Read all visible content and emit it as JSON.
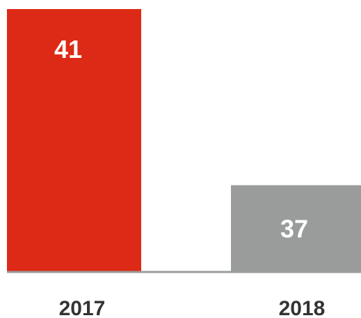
{
  "chart_data": {
    "type": "bar",
    "categories": [
      "2017",
      "2018"
    ],
    "values": [
      41,
      37
    ],
    "bar_colors": [
      "#dd2a16",
      "#9a9c9c"
    ],
    "baseline_color": "#9a9c9c",
    "label_color": "#333333",
    "data_label_color": "#ffffff",
    "title": "",
    "xlabel": "",
    "ylabel": "",
    "grid": false,
    "legend": "none"
  }
}
